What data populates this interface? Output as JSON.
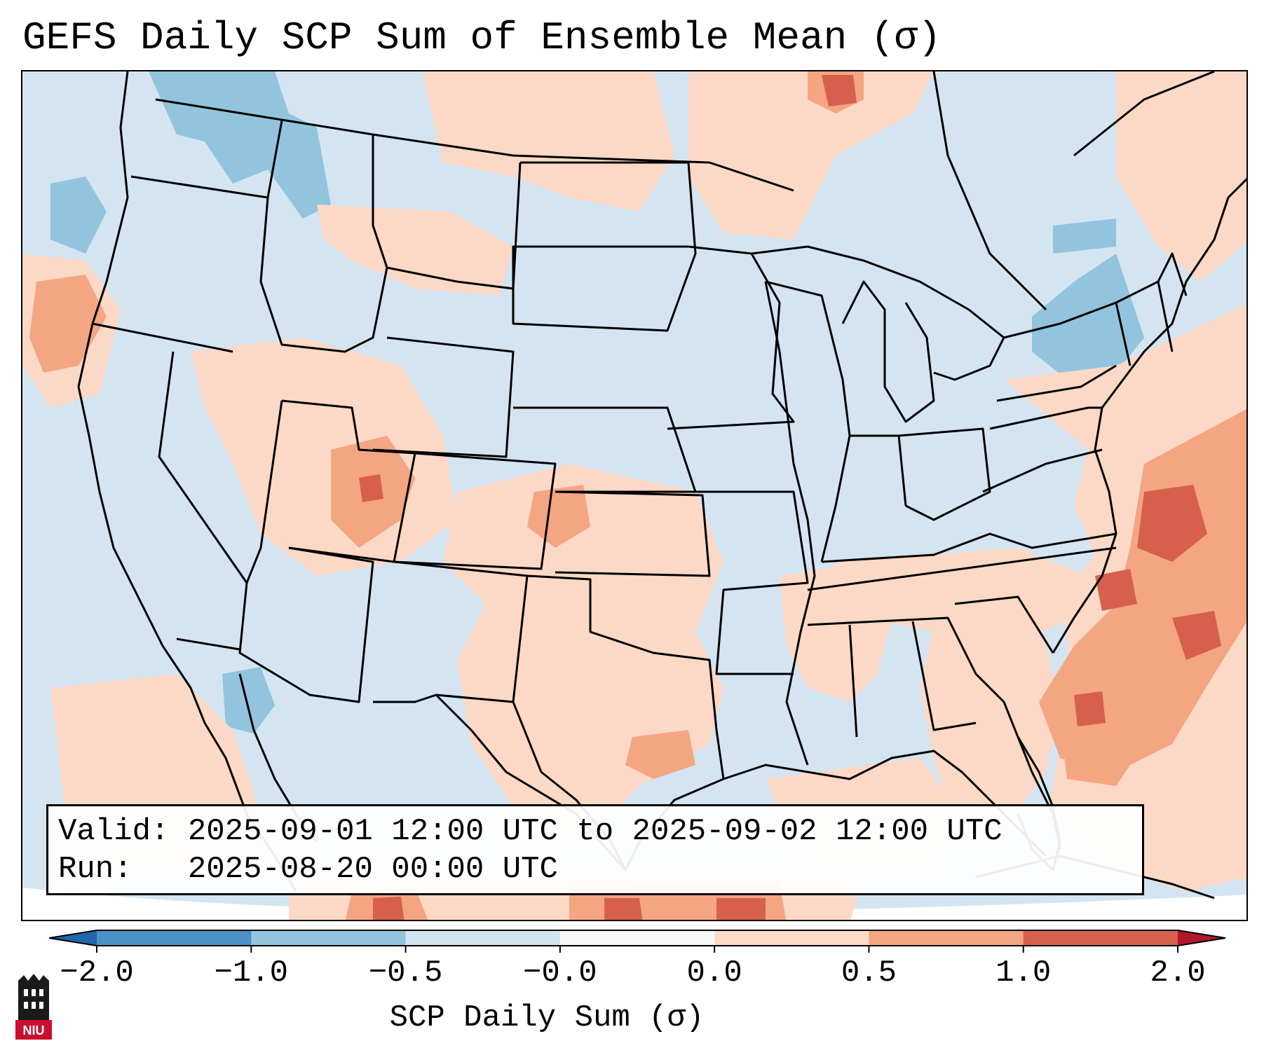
{
  "title": "GEFS Daily SCP Sum of Ensemble Mean (σ)",
  "info": {
    "valid_label": "Valid:",
    "valid_value": "2025-09-01 12:00 UTC to 2025-09-02 12:00 UTC",
    "run_label": "Run:",
    "run_value": "2025-08-20 00:00 UTC"
  },
  "colorbar": {
    "label": "SCP Daily Sum (σ)",
    "ticks": [
      "−2.0",
      "−1.0",
      "−0.5",
      "−0.0",
      "0.0",
      "0.5",
      "1.0",
      "2.0"
    ],
    "bins": [
      {
        "from": -2.0,
        "to": -1.0,
        "color": "#4a90c4"
      },
      {
        "from": -1.0,
        "to": -0.5,
        "color": "#92c4de"
      },
      {
        "from": -0.5,
        "to": -0.0,
        "color": "#d1e5f0"
      },
      {
        "from": -0.0,
        "to": 0.0,
        "color": "#f7f7f7"
      },
      {
        "from": 0.0,
        "to": 0.5,
        "color": "#fddbc7"
      },
      {
        "from": 0.5,
        "to": 1.0,
        "color": "#f4a582"
      },
      {
        "from": 1.0,
        "to": 2.0,
        "color": "#d6604d"
      }
    ],
    "extend_low_color": "#2166ac",
    "extend_high_color": "#b2182b"
  },
  "map": {
    "region": "Contiguous United States",
    "colors": {
      "background": "#d4e5f1",
      "negative_moderate": "#92c4de",
      "positive_light": "#fcd9c6",
      "positive_moderate": "#f4a582",
      "positive_strong": "#d6604d",
      "border": "#000000"
    }
  },
  "logo": {
    "text": "NIU",
    "color": "#c8102e"
  }
}
